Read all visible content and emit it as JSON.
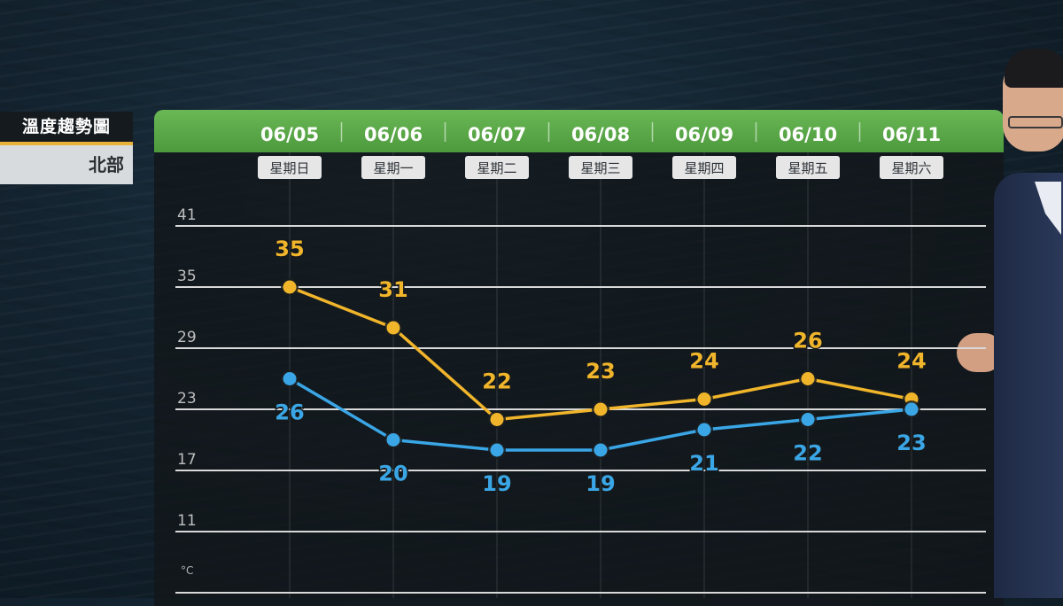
{
  "title": {
    "main": "溫度趨勢圖",
    "region": "北部"
  },
  "colors": {
    "header_green": "#5aa947",
    "accent_yellow": "#e9b23a",
    "high_line": "#f0b52b",
    "low_line": "#3aa6e6",
    "grid": "#d9d9d9"
  },
  "chart_data": {
    "type": "line",
    "categories": [
      "06/05",
      "06/06",
      "06/07",
      "06/08",
      "06/09",
      "06/10",
      "06/11"
    ],
    "weekdays": [
      "星期日",
      "星期一",
      "星期二",
      "星期三",
      "星期四",
      "星期五",
      "星期六"
    ],
    "y_ticks": [
      41,
      35,
      29,
      23,
      17,
      11
    ],
    "unit": "°C",
    "ylim": [
      5,
      41
    ],
    "grid": true,
    "series": [
      {
        "values": [
          35,
          31,
          22,
          23,
          24,
          26,
          24
        ],
        "color": "#f0b52b"
      },
      {
        "values": [
          26,
          20,
          19,
          19,
          21,
          22,
          23
        ],
        "color": "#3aa6e6"
      }
    ]
  }
}
